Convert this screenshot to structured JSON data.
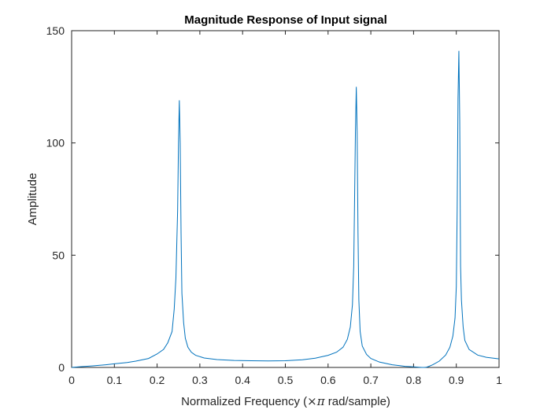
{
  "chart_data": {
    "type": "line",
    "title": "Magnitude Response of Input signal",
    "xlabel_prefix": "Normalized Frequency  (",
    "xlabel_symbol": "×π",
    "xlabel_suffix": " rad/sample)",
    "ylabel": "Amplitude",
    "xlim": [
      0,
      1
    ],
    "ylim": [
      0,
      150
    ],
    "xticks": [
      0,
      0.1,
      0.2,
      0.3,
      0.4,
      0.5,
      0.6,
      0.7,
      0.8,
      0.9,
      1
    ],
    "xtick_labels": [
      "0",
      "0.1",
      "0.2",
      "0.3",
      "0.4",
      "0.5",
      "0.6",
      "0.7",
      "0.8",
      "0.9",
      "1"
    ],
    "yticks": [
      0,
      50,
      100,
      150
    ],
    "ytick_labels": [
      "0",
      "50",
      "100",
      "150"
    ],
    "grid": false,
    "box": true,
    "line_color": "#0072bd",
    "series": [
      {
        "x": [
          0,
          0.02,
          0.05,
          0.08,
          0.1,
          0.13,
          0.15,
          0.18,
          0.2,
          0.215,
          0.225,
          0.235,
          0.24,
          0.244,
          0.248,
          0.25,
          0.252,
          0.254,
          0.256,
          0.258,
          0.262,
          0.266,
          0.272,
          0.28,
          0.29,
          0.31,
          0.34,
          0.38,
          0.42,
          0.46,
          0.5,
          0.54,
          0.57,
          0.6,
          0.62,
          0.635,
          0.645,
          0.652,
          0.657,
          0.66,
          0.662,
          0.664,
          0.666,
          0.668,
          0.67,
          0.672,
          0.675,
          0.68,
          0.69,
          0.7,
          0.72,
          0.75,
          0.78,
          0.8,
          0.815,
          0.82,
          0.825,
          0.83,
          0.835,
          0.845,
          0.86,
          0.875,
          0.885,
          0.892,
          0.897,
          0.9,
          0.902,
          0.904,
          0.906,
          0.908,
          0.91,
          0.912,
          0.916,
          0.92,
          0.93,
          0.95,
          0.97,
          1.0
        ],
        "y": [
          0,
          0.3,
          0.7,
          1.2,
          1.6,
          2.2,
          2.8,
          4,
          6,
          8,
          11,
          16,
          26,
          40,
          70,
          100,
          119,
          100,
          60,
          33,
          20,
          13,
          9,
          6.8,
          5.4,
          4.2,
          3.5,
          3.1,
          3,
          2.9,
          3,
          3.4,
          4.1,
          5.4,
          6.8,
          9,
          12.5,
          18,
          28,
          45,
          75,
          105,
          125,
          105,
          60,
          30,
          16,
          9.5,
          5.8,
          4,
          2.4,
          1.2,
          0.5,
          0.25,
          0.05,
          0,
          0,
          0.1,
          0.4,
          1.2,
          2.8,
          5.5,
          9,
          14,
          22,
          36,
          70,
          120,
          141,
          110,
          45,
          30,
          18,
          12,
          8,
          5.5,
          4.5,
          3.8
        ]
      }
    ]
  }
}
